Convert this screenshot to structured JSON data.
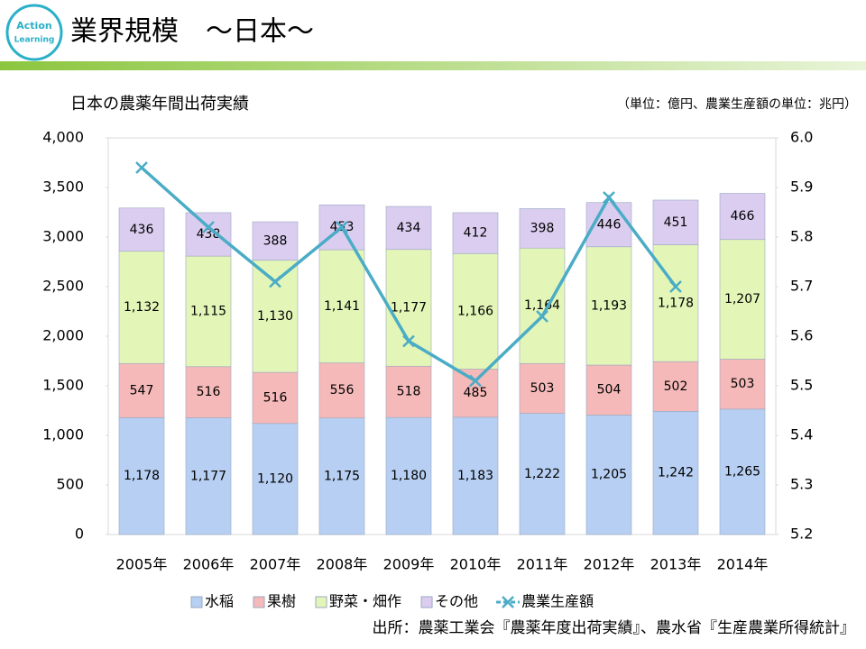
{
  "header": {
    "logo": [
      "Action",
      "Learning"
    ],
    "title": "業界規模　～日本～"
  },
  "chart_data": {
    "type": "bar",
    "stacked": true,
    "title": "日本の農薬年間出荷実績",
    "subtitle": "（単位：億円、農業生産額の単位：兆円）",
    "source": "出所：農薬工業会『農薬年度出荷実績』、農水省『生産農業所得統計』",
    "categories": [
      "2005年",
      "2006年",
      "2007年",
      "2008年",
      "2009年",
      "2010年",
      "2011年",
      "2012年",
      "2013年",
      "2014年"
    ],
    "series": [
      {
        "name": "水稲",
        "color": "#b7cff2",
        "values": [
          1178,
          1177,
          1120,
          1175,
          1180,
          1183,
          1222,
          1205,
          1242,
          1265
        ],
        "value_labels": [
          "1,178",
          "1,177",
          "1,120",
          "1,175",
          "1,180",
          "1,183",
          "1,222",
          "1,205",
          "1,242",
          "1,265"
        ]
      },
      {
        "name": "果樹",
        "color": "#f6b9b9",
        "values": [
          547,
          516,
          516,
          556,
          518,
          485,
          503,
          504,
          502,
          503
        ]
      },
      {
        "name": "野菜・畑作",
        "color": "#e3f6b8",
        "values": [
          1132,
          1115,
          1130,
          1141,
          1177,
          1166,
          1164,
          1193,
          1178,
          1207
        ],
        "value_labels": [
          "1,132",
          "1,115",
          "1,130",
          "1,141",
          "1,177",
          "1,166",
          "1,164",
          "1,193",
          "1,178",
          "1,207"
        ]
      },
      {
        "name": "その他",
        "color": "#dbcdf0",
        "values": [
          436,
          438,
          388,
          453,
          434,
          412,
          398,
          446,
          451,
          466
        ]
      },
      {
        "name": "農業生産額",
        "type": "line",
        "axis": "y2",
        "color": "#4bacc6",
        "values": [
          5.94,
          5.82,
          5.71,
          5.82,
          5.59,
          5.51,
          5.64,
          5.88,
          5.7,
          null
        ]
      }
    ],
    "ylim": [
      0,
      4000
    ],
    "yticks": [
      0,
      500,
      {
        "value": 1000,
        "label": "1,000"
      },
      {
        "value": 1500,
        "label": "1,500"
      },
      {
        "value": 2000,
        "label": "2,000"
      },
      {
        "value": 2500,
        "label": "2,500"
      },
      {
        "value": 3000,
        "label": "3,000"
      },
      {
        "value": 3500,
        "label": "3,500"
      },
      {
        "value": 4000,
        "label": "4,000"
      }
    ],
    "y2lim": [
      5.2,
      6.0
    ],
    "y2ticks": [
      5.2,
      5.3,
      5.4,
      5.5,
      5.6,
      5.7,
      5.8,
      5.9,
      {
        "value": 6.0,
        "label": "6.0"
      }
    ],
    "grid": false,
    "legend": "bottom"
  }
}
